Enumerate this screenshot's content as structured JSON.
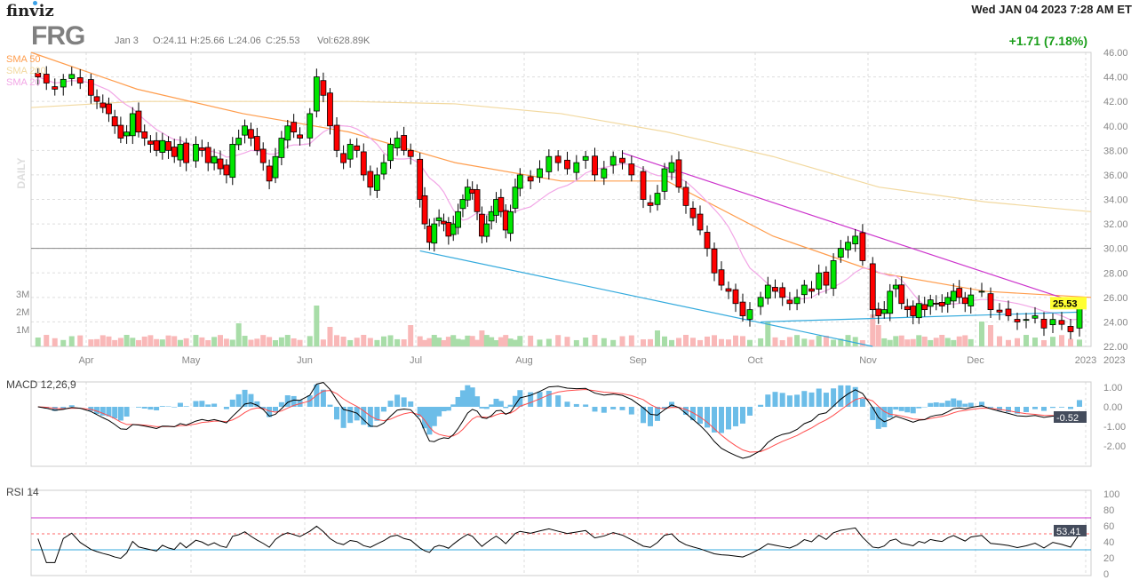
{
  "header": {
    "logo": "finviz",
    "datetime": "Wed JAN 04 2023 7:28 AM ET",
    "ticker": "FRG",
    "bar_date": "Jan 3",
    "open": "O:24.11",
    "high": "H:25.66",
    "low": "L:24.06",
    "close": "C:25.53",
    "volume": "Vol:628.89K",
    "change": "+1.71 (7.18%)",
    "period_label": "DAILY"
  },
  "legend": [
    {
      "label": "SMA 50",
      "color": "#ff9d4d"
    },
    {
      "label": "SMA 200",
      "color": "#f2d9a0"
    },
    {
      "label": "SMA 20",
      "color": "#f2a6e6"
    }
  ],
  "colors": {
    "up": "#00e600",
    "down": "#ff0000",
    "vol_up": "#a8dda8",
    "vol_down": "#f9b8b8",
    "macd": "#000000",
    "signal": "#ff4d4d",
    "hist": "#6cbde8",
    "rsi": "#000000",
    "upper": "#cc33cc",
    "lower": "#33aadd"
  },
  "chart_data": {
    "type": "candlestick",
    "price_axis": {
      "ticks": [
        "46.00",
        "44.00",
        "42.00",
        "40.00",
        "38.00",
        "36.00",
        "34.00",
        "32.00",
        "30.00",
        "28.00",
        "26.00",
        "24.00",
        "22.00"
      ],
      "range": [
        22,
        46
      ]
    },
    "volume_axis": {
      "ticks": [
        "3M",
        "2M",
        "1M"
      ]
    },
    "months": [
      {
        "label": "",
        "closes": [
          44,
          43.5,
          43,
          43.8,
          44.2,
          43.5
        ]
      },
      {
        "label": "Apr",
        "closes": [
          42.5,
          42,
          41.5,
          41,
          40,
          39,
          39.5,
          41,
          39.5,
          39,
          38.5,
          38,
          38.8,
          38,
          37.5,
          38.5,
          37
        ]
      },
      {
        "label": "May",
        "closes": [
          38.5,
          38,
          37,
          37.5,
          36.5,
          36,
          38.5,
          39,
          40,
          39,
          38,
          37,
          35.5,
          37.5,
          39,
          40,
          39.5,
          39
        ]
      },
      {
        "label": "Jun",
        "closes": [
          41,
          44,
          42.5,
          40,
          38,
          37,
          38.5,
          38,
          36,
          35,
          36,
          37,
          38.5,
          39,
          38,
          37.5
        ]
      },
      {
        "label": "Jul",
        "closes": [
          34,
          32,
          30.5,
          32,
          32.5,
          32,
          31,
          32,
          33,
          34,
          35,
          34.5,
          33,
          31,
          32,
          33,
          34,
          33,
          31.5,
          33,
          35,
          36
        ]
      },
      {
        "label": "Aug",
        "closes": [
          35.5,
          36.5,
          37.5,
          37,
          36.5,
          37,
          37.5,
          36,
          36.5,
          37.5,
          37,
          36
        ]
      },
      {
        "label": "Sep",
        "closes": [
          34,
          33.5,
          34.5,
          36.5,
          37,
          35,
          33.5,
          32.5,
          31.5,
          30,
          28,
          27,
          26.5,
          25.5,
          24.5,
          25
        ]
      },
      {
        "label": "Oct",
        "closes": [
          26,
          27,
          26.5,
          26,
          25.5,
          26,
          27,
          26.5,
          28,
          27,
          29,
          30,
          30.5,
          31,
          29
        ]
      },
      {
        "label": "Nov",
        "closes": [
          25,
          24.5,
          25,
          26.5,
          27,
          25.5,
          25,
          24.5,
          25.5,
          25,
          25.8,
          25.5,
          25.3,
          26,
          26.5,
          26,
          25.5,
          26.2
        ]
      },
      {
        "label": "Dec",
        "closes": [
          26.5,
          25,
          24.8,
          24.5,
          24,
          24.2,
          24.5,
          23.5,
          24.2,
          23.8,
          23.2,
          25.53
        ]
      },
      {
        "label": "2023",
        "closes": []
      }
    ],
    "volume_M": {
      "base": 0.5,
      "spikes": {
        "30": 1.3,
        "42": 2.3,
        "44": 1.1,
        "56": 1.2,
        "70": 0.9,
        "93": 0.9,
        "108": 1.4,
        "122": 1.8,
        "123": 1.2,
        "140": 1.4,
        "141": 1.2
      }
    },
    "sma50": [
      46,
      43,
      41,
      39.5,
      37,
      35.5,
      35.5,
      31,
      28,
      26.5,
      26
    ],
    "sma200": [
      41.5,
      42,
      42,
      42,
      41.8,
      41,
      39.5,
      37.5,
      35,
      33.8,
      33
    ],
    "trendlines": [
      {
        "from": [
          89,
          37.8
        ],
        "to": [
          151,
          25.5
        ],
        "color": "upper"
      },
      {
        "from": [
          57,
          29.8
        ],
        "to": [
          122,
          22
        ],
        "color": "lower"
      },
      {
        "from": [
          107,
          24
        ],
        "to": [
          151,
          24.8
        ],
        "color": "lower"
      }
    ],
    "hline": 30,
    "last_price": "25.53",
    "macd": {
      "label": "MACD 12,26,9",
      "ticks": [
        "1.00",
        "0.00",
        "-1.00",
        "-2.00"
      ],
      "range": [
        -3,
        1.3
      ],
      "last": "-0.52"
    },
    "rsi": {
      "label": "RSI 14",
      "ticks": [
        "100",
        "80",
        "60",
        "40",
        "20",
        "0"
      ],
      "last": "53.41",
      "levels": [
        70,
        30
      ]
    }
  }
}
